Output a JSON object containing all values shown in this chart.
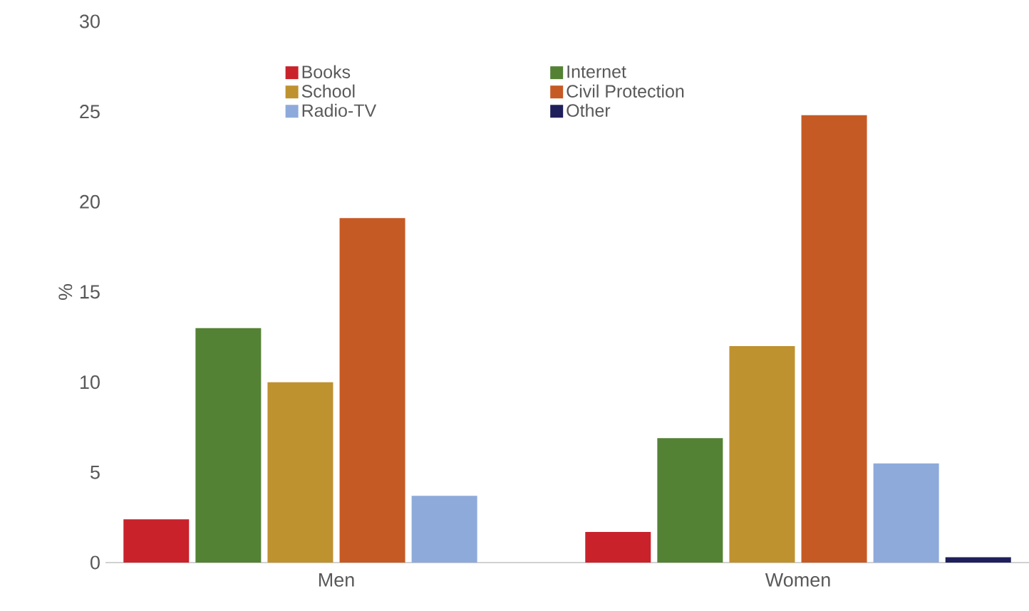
{
  "chart_data": {
    "type": "bar",
    "ylabel": "%",
    "categories": [
      "Men",
      "Women"
    ],
    "series": [
      {
        "name": "Books",
        "color": "#c9222b",
        "values": [
          2.4,
          1.7
        ]
      },
      {
        "name": "Internet",
        "color": "#548235",
        "values": [
          13.0,
          6.9
        ]
      },
      {
        "name": "School",
        "color": "#bf9230",
        "values": [
          10.0,
          12.0
        ]
      },
      {
        "name": "Civil Protection",
        "color": "#c65a24",
        "values": [
          19.1,
          24.8
        ]
      },
      {
        "name": "Radio-TV",
        "color": "#8eaadb",
        "values": [
          3.7,
          5.5
        ]
      },
      {
        "name": "Other",
        "color": "#1f1f5c",
        "values": [
          null,
          0.3
        ]
      }
    ],
    "ylim": [
      0,
      30
    ],
    "yticks": [
      0,
      5,
      10,
      15,
      20,
      25,
      30
    ],
    "legend": "top"
  }
}
